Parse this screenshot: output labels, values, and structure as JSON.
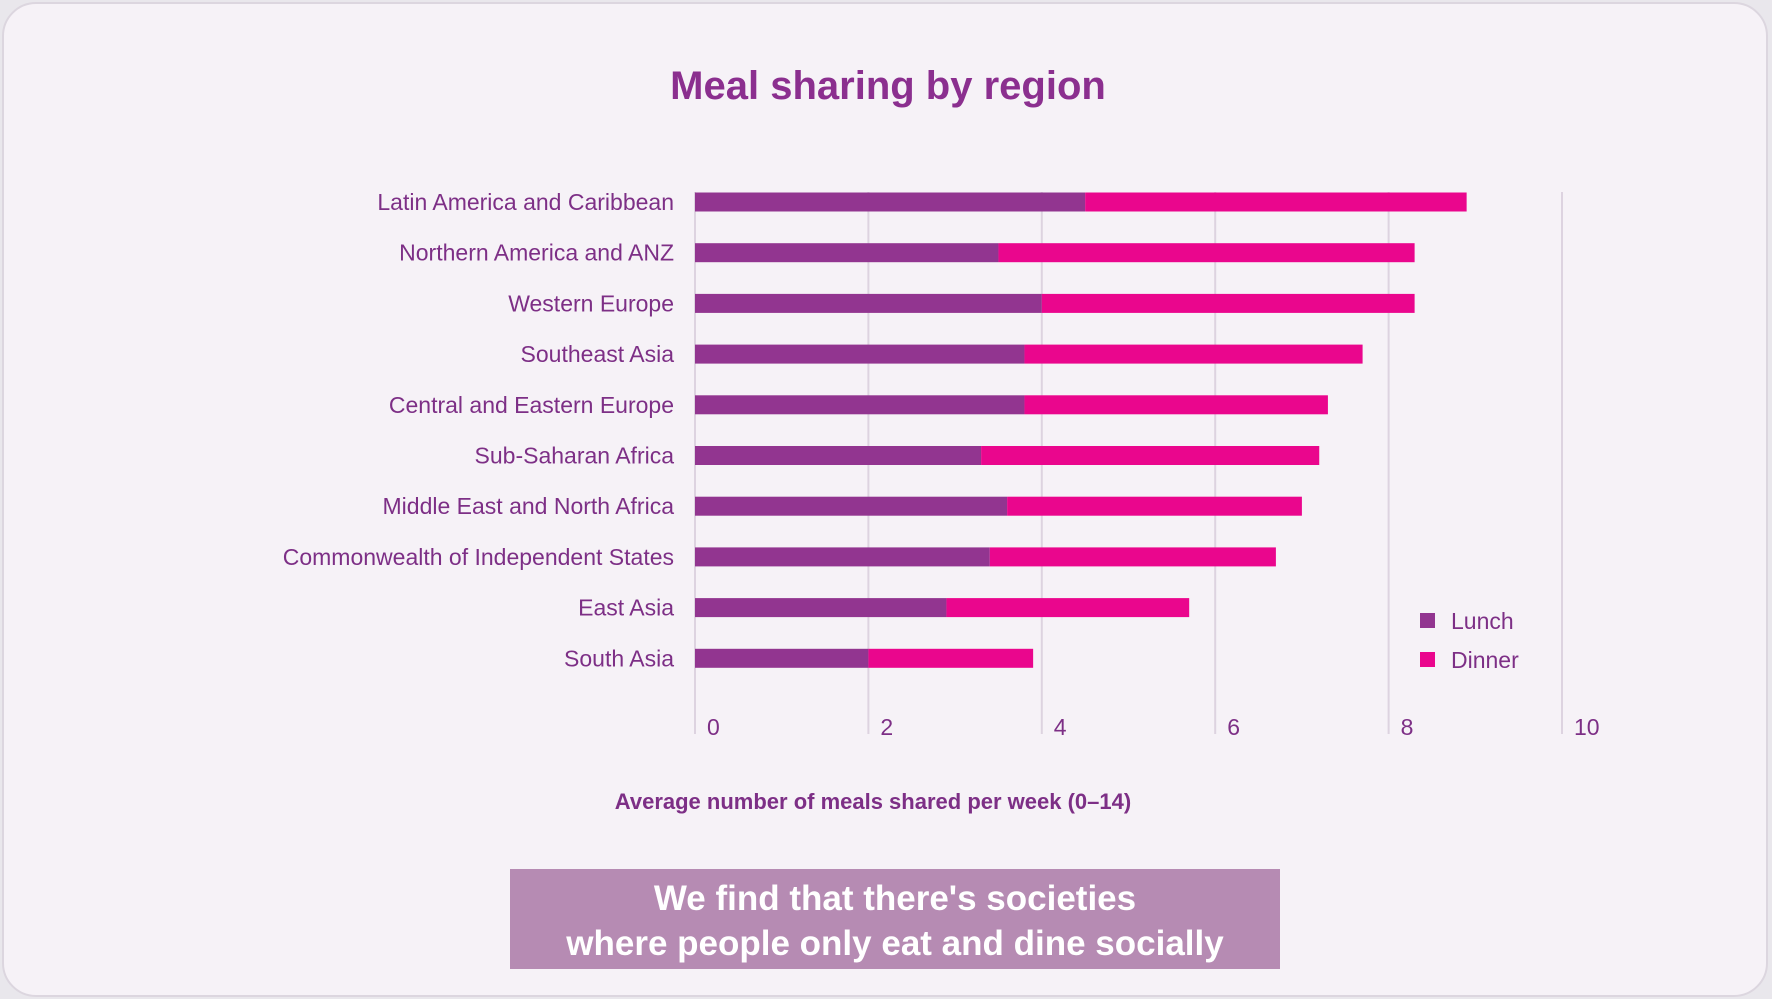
{
  "chart_data": {
    "type": "bar",
    "orientation": "horizontal",
    "stacked": true,
    "title": "Meal sharing by region",
    "xlabel": "Average number of meals shared per week (0–14)",
    "ylabel": "",
    "xlim": [
      0,
      10
    ],
    "xticks": [
      "0",
      "2",
      "4",
      "6",
      "8",
      "10"
    ],
    "grid": true,
    "legend_position": "bottom-right",
    "categories": [
      "Latin America and Caribbean",
      "Northern America and ANZ",
      "Western Europe",
      "Southeast Asia",
      "Central and Eastern Europe",
      "Sub-Saharan Africa",
      "Middle East and North Africa",
      "Commonwealth of Independent States",
      "East Asia",
      "South Asia"
    ],
    "series": [
      {
        "name": "Lunch",
        "color": "#923590",
        "values": [
          4.5,
          3.5,
          4.0,
          3.8,
          3.8,
          3.3,
          3.6,
          3.4,
          2.9,
          2.0
        ]
      },
      {
        "name": "Dinner",
        "color": "#ea068d",
        "values": [
          4.4,
          4.8,
          4.3,
          3.9,
          3.5,
          3.9,
          3.4,
          3.3,
          2.8,
          1.9
        ]
      }
    ]
  },
  "caption": {
    "line1": "We find that there's societies",
    "line2": "where people only eat and dine socially"
  }
}
